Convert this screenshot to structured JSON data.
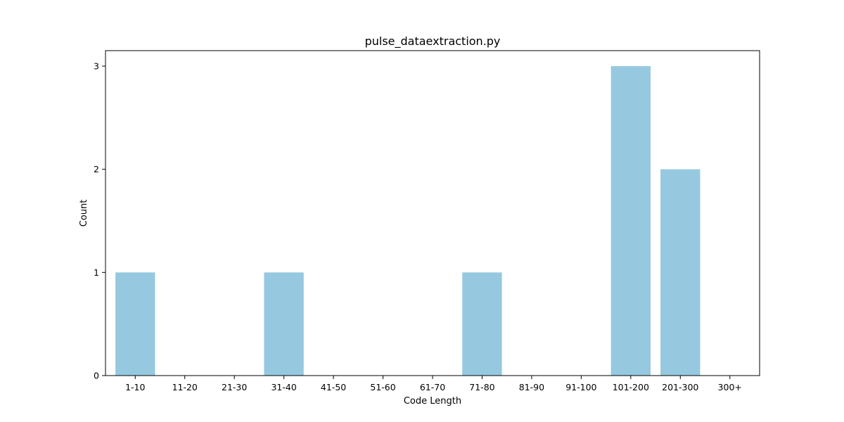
{
  "chart_data": {
    "type": "bar",
    "title": "pulse_dataextraction.py",
    "xlabel": "Code Length",
    "ylabel": "Count",
    "categories": [
      "1-10",
      "11-20",
      "21-30",
      "31-40",
      "41-50",
      "51-60",
      "61-70",
      "71-80",
      "81-90",
      "91-100",
      "101-200",
      "201-300",
      "300+"
    ],
    "values": [
      1,
      0,
      0,
      1,
      0,
      0,
      0,
      1,
      0,
      0,
      3,
      2,
      0
    ],
    "ylim": [
      0,
      3.15
    ],
    "yticks": [
      "0",
      "1",
      "2",
      "3"
    ],
    "grid": false,
    "legend": "none",
    "colors": {
      "bar": "#96c9df",
      "axis": "#000000",
      "background": "#ffffff"
    }
  }
}
